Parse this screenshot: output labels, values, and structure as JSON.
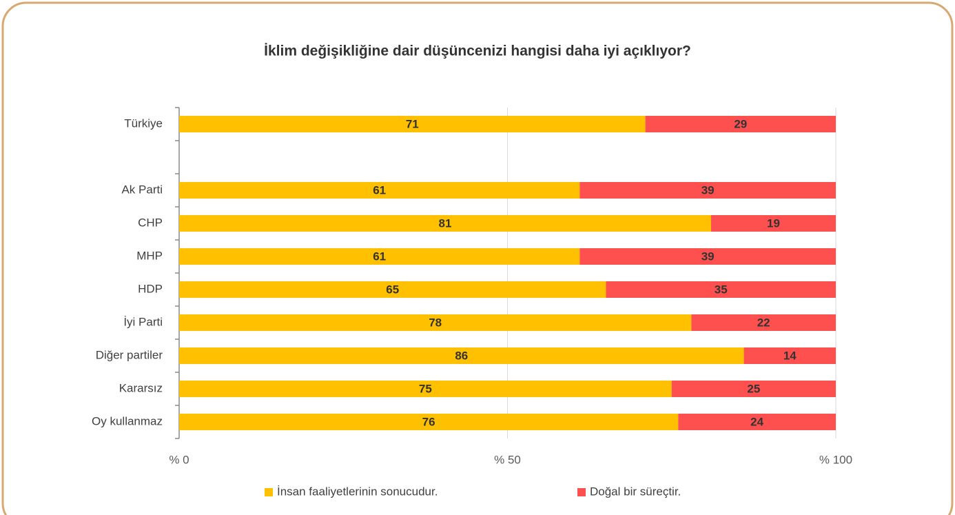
{
  "chart_data": {
    "type": "bar",
    "orientation": "horizontal",
    "stacked": true,
    "title": "İklim değişikliğine dair düşüncenizi hangisi daha iyi açıklıyor?",
    "categories": [
      "Türkiye",
      null,
      "Ak Parti",
      "CHP",
      "MHP",
      "HDP",
      "İyi Parti",
      "Diğer partiler",
      "Kararsız",
      "Oy kullanmaz"
    ],
    "series": [
      {
        "name": "İnsan faaliyetlerinin sonucudur.",
        "color": "#ffc000",
        "values": [
          71,
          null,
          61,
          81,
          61,
          65,
          78,
          86,
          75,
          76
        ]
      },
      {
        "name": "Doğal bir süreçtir.",
        "color": "#ff5050",
        "values": [
          29,
          null,
          39,
          19,
          39,
          35,
          22,
          14,
          25,
          24
        ]
      }
    ],
    "xlim": [
      0,
      100
    ],
    "xticks": [
      {
        "value": 0,
        "label": "% 0"
      },
      {
        "value": 50,
        "label": "% 50"
      },
      {
        "value": 100,
        "label": "% 100"
      }
    ],
    "grid": true,
    "legend": "bottom"
  }
}
